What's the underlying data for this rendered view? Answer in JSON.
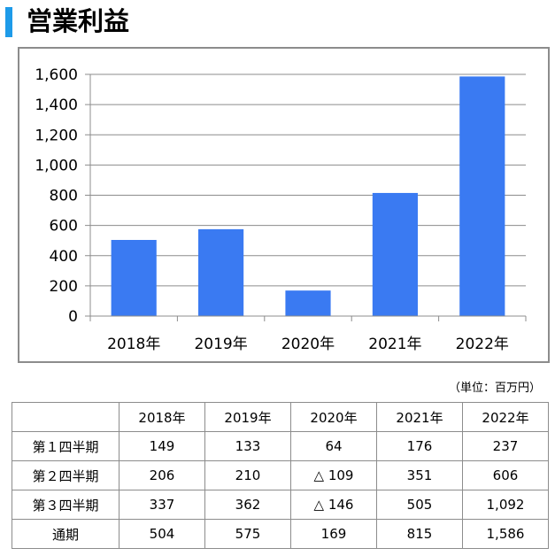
{
  "title": "営業利益",
  "unit_note": "（単位：百万円）",
  "colors": {
    "accent": "#1e9be9",
    "bar": "#3a7af2",
    "grid": "#8c8c8c"
  },
  "chart_data": {
    "type": "bar",
    "categories": [
      "2018年",
      "2019年",
      "2020年",
      "2021年",
      "2022年"
    ],
    "values": [
      504,
      575,
      169,
      815,
      1586
    ],
    "ylim": [
      0,
      1600
    ],
    "yticks": [
      "0",
      "200",
      "400",
      "600",
      "800",
      "1,000",
      "1,200",
      "1,400",
      "1,600"
    ],
    "grid": true
  },
  "table": {
    "headers": [
      "",
      "2018年",
      "2019年",
      "2020年",
      "2021年",
      "2022年"
    ],
    "rows": [
      {
        "label": "第１四半期",
        "cells": [
          "149",
          "133",
          "64",
          "176",
          "237"
        ]
      },
      {
        "label": "第２四半期",
        "cells": [
          "206",
          "210",
          "△ 109",
          "351",
          "606"
        ]
      },
      {
        "label": "第３四半期",
        "cells": [
          "337",
          "362",
          "△ 146",
          "505",
          "1,092"
        ]
      },
      {
        "label": "通期",
        "cells": [
          "504",
          "575",
          "169",
          "815",
          "1,586"
        ]
      }
    ]
  }
}
